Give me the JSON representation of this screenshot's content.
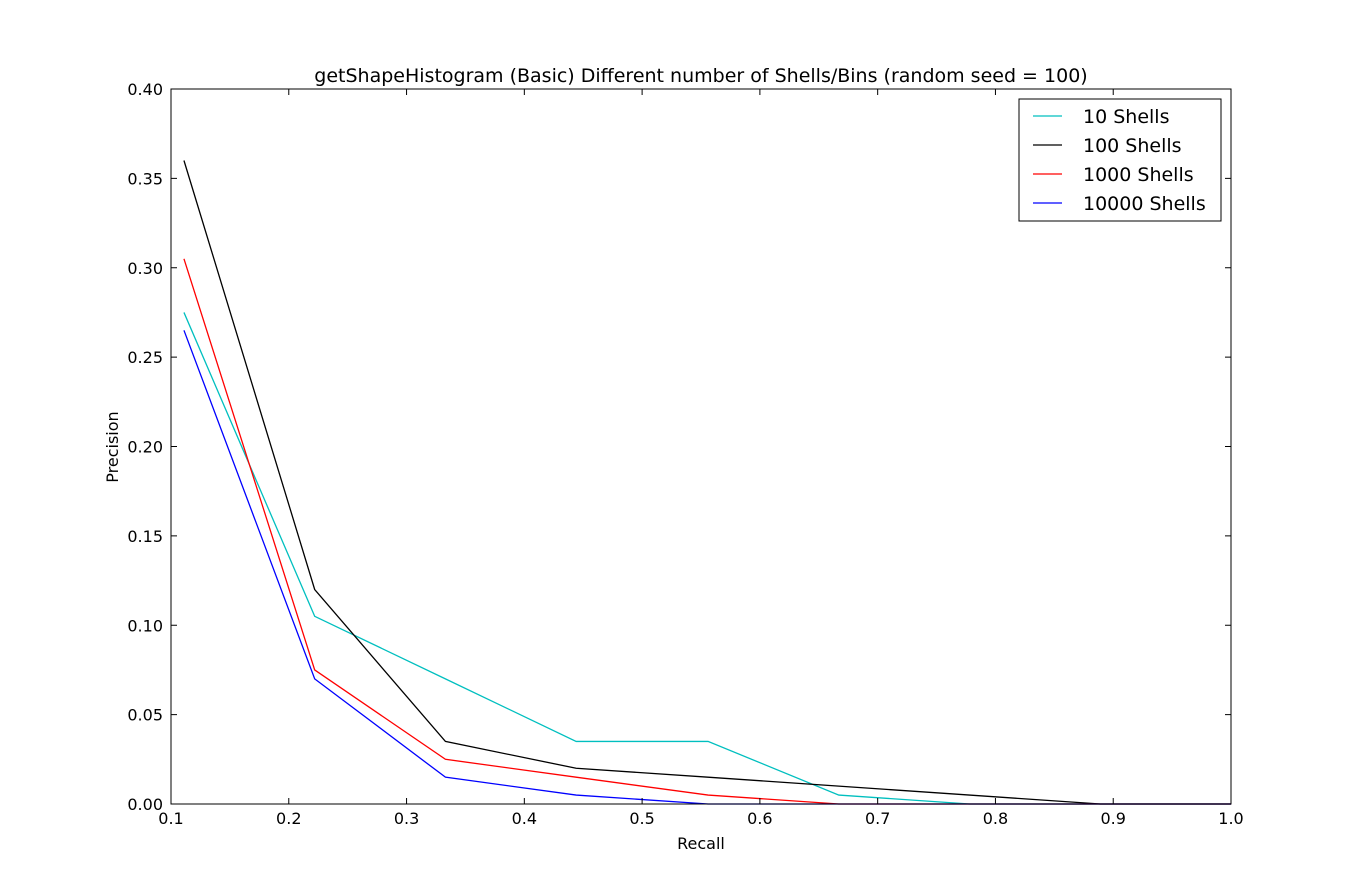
{
  "chart_data": {
    "type": "line",
    "title": "getShapeHistogram (Basic) Different number of Shells/Bins (random seed = 100)",
    "xlabel": "Recall",
    "ylabel": "Precision",
    "xlim": [
      0.1,
      1.0
    ],
    "ylim": [
      0.0,
      0.4
    ],
    "xticks": [
      "0.1",
      "0.2",
      "0.3",
      "0.4",
      "0.5",
      "0.6",
      "0.7",
      "0.8",
      "0.9",
      "1.0"
    ],
    "yticks": [
      "0.00",
      "0.05",
      "0.10",
      "0.15",
      "0.20",
      "0.25",
      "0.30",
      "0.35",
      "0.40"
    ],
    "x": [
      0.111,
      0.222,
      0.333,
      0.444,
      0.556,
      0.667,
      0.778,
      0.889,
      1.0
    ],
    "grid": false,
    "legend_position": "top-right",
    "series": [
      {
        "name": "10 Shells",
        "color": "#00bfbf",
        "values": [
          0.275,
          0.105,
          0.07,
          0.035,
          0.035,
          0.005,
          0.0,
          0.0,
          0.0
        ]
      },
      {
        "name": "100 Shells",
        "color": "#000000",
        "values": [
          0.36,
          0.12,
          0.035,
          0.02,
          0.015,
          0.01,
          0.005,
          0.0,
          0.0
        ]
      },
      {
        "name": "1000 Shells",
        "color": "#ff0000",
        "values": [
          0.305,
          0.075,
          0.025,
          0.015,
          0.005,
          0.0,
          0.0,
          0.0,
          0.0
        ]
      },
      {
        "name": "10000 Shells",
        "color": "#0000ff",
        "values": [
          0.265,
          0.07,
          0.015,
          0.005,
          0.0,
          0.0,
          0.0,
          0.0,
          0.0
        ]
      }
    ]
  }
}
